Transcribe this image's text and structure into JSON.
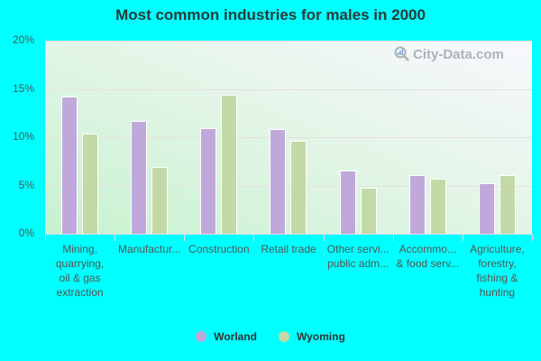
{
  "chart_data": {
    "type": "bar",
    "title": "Most common industries for males in 2000",
    "xlabel": "",
    "ylabel": "",
    "ylim": [
      0,
      20
    ],
    "yticks": [
      "0%",
      "5%",
      "10%",
      "15%",
      "20%"
    ],
    "grid": true,
    "legend_position": "bottom",
    "categories": [
      "Mining, quarrying, oil & gas extraction",
      "Manufactur...",
      "Construction",
      "Retail trade",
      "Other servi... public adm...",
      "Accommo... & food serv...",
      "Agriculture, forestry, fishing & hunting"
    ],
    "series": [
      {
        "name": "Worland",
        "color": "#c0a9da",
        "values": [
          14.2,
          11.7,
          10.9,
          10.8,
          6.5,
          6.1,
          5.2
        ]
      },
      {
        "name": "Wyoming",
        "color": "#c4d9a8",
        "values": [
          10.4,
          6.9,
          14.4,
          9.6,
          4.8,
          5.7,
          6.1
        ]
      }
    ]
  },
  "labels": {
    "x": [
      "Mining,\nquarrying,\noil & gas\nextraction",
      "Manufactur...",
      "Construction",
      "Retail trade",
      "Other servi...\npublic adm...",
      "Accommo...\n& food serv...",
      "Agriculture,\nforestry,\nfishing &\nhunting"
    ]
  },
  "watermark": "City-Data.com"
}
